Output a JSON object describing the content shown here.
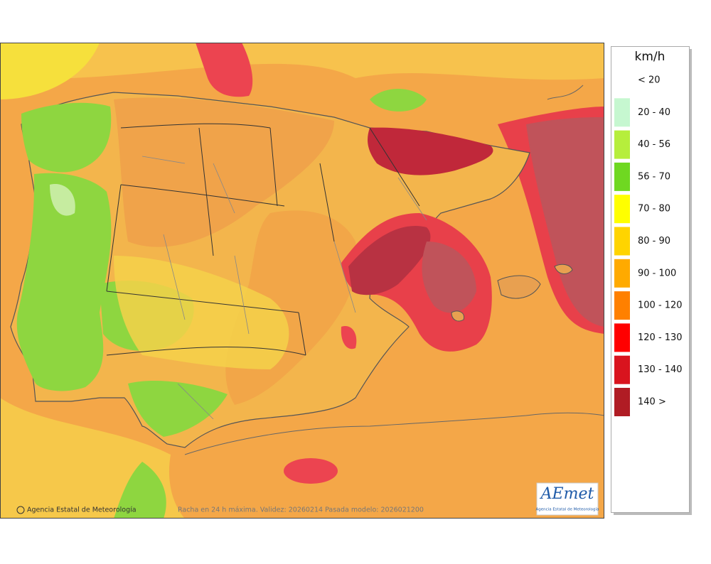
{
  "legend": {
    "unit": "km/h",
    "items": [
      {
        "label": "< 20"
      },
      {
        "label": "20 - 40",
        "color": "#c6f7d0"
      },
      {
        "label": "40 - 56",
        "color": "#b6ee3c"
      },
      {
        "label": "56 - 70",
        "color": "#6fd821"
      },
      {
        "label": "70 - 80",
        "color": "#ffff00"
      },
      {
        "label": "80 - 90",
        "color": "#ffd400"
      },
      {
        "label": "90 - 100",
        "color": "#ffaa00"
      },
      {
        "label": "100 - 120",
        "color": "#ff8000"
      },
      {
        "label": "120 - 130",
        "color": "#ff0000"
      },
      {
        "label": "130 - 140",
        "color": "#d9141e"
      },
      {
        "label": "140 >",
        "color": "#b01c24"
      }
    ]
  },
  "map": {
    "credit": "Agencia Estatal de Meteorología",
    "caption": "Racha en 24 h máxima. Validez: 20260214 Pasada modelo: 2026021200"
  },
  "logo": {
    "name": "AEmet",
    "subtitle": "Agencia Estatal de Meteorología"
  }
}
